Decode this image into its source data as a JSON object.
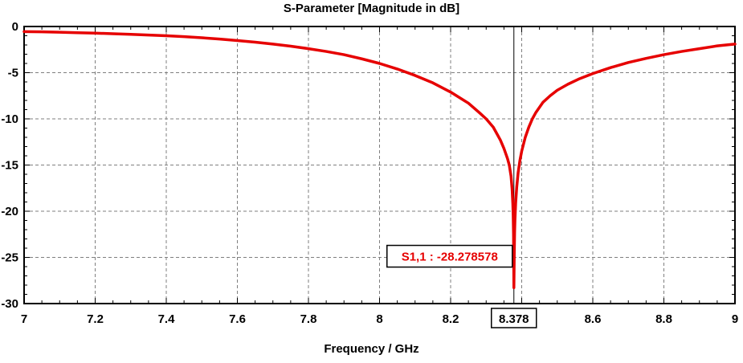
{
  "chart": {
    "title": "S-Parameter [Magnitude in dB]",
    "xlabel": "Frequency / GHz"
  },
  "colors": {
    "curve": "#e60000",
    "grid": "#7f7f7f",
    "axis": "#000000",
    "marker_line": "#000000",
    "marker_text": "#e60000",
    "background": "#ffffff"
  },
  "chart_data": {
    "type": "line",
    "title": "S-Parameter [Magnitude in dB]",
    "xlabel": "Frequency / GHz",
    "ylabel": "",
    "xlim": [
      7,
      9
    ],
    "ylim": [
      -30,
      0
    ],
    "grid": true,
    "legend_position": "none",
    "x_ticks": [
      7,
      7.2,
      7.4,
      7.6,
      7.8,
      8,
      8.2,
      8.4,
      8.6,
      8.8,
      9
    ],
    "x_tick_labels": [
      "7",
      "7.2",
      "7.4",
      "7.6",
      "7.8",
      "8",
      "8.2",
      "",
      "8.6",
      "8.8",
      "9"
    ],
    "y_ticks": [
      0,
      -5,
      -10,
      -15,
      -20,
      -25,
      -30
    ],
    "y_tick_labels": [
      "0",
      "-5",
      "-10",
      "-15",
      "-20",
      "-25",
      "-30"
    ],
    "marker": {
      "x": 8.378,
      "y": -28.278578,
      "label": "S1,1 : -28.278578",
      "x_axis_label": "8.378"
    },
    "series": [
      {
        "name": "S1,1",
        "color": "#e60000",
        "points": [
          [
            7.0,
            -0.55
          ],
          [
            7.05,
            -0.58
          ],
          [
            7.1,
            -0.62
          ],
          [
            7.15,
            -0.67
          ],
          [
            7.2,
            -0.72
          ],
          [
            7.25,
            -0.78
          ],
          [
            7.3,
            -0.85
          ],
          [
            7.35,
            -0.92
          ],
          [
            7.4,
            -1.0
          ],
          [
            7.45,
            -1.1
          ],
          [
            7.5,
            -1.22
          ],
          [
            7.55,
            -1.36
          ],
          [
            7.6,
            -1.52
          ],
          [
            7.65,
            -1.7
          ],
          [
            7.7,
            -1.9
          ],
          [
            7.75,
            -2.13
          ],
          [
            7.8,
            -2.4
          ],
          [
            7.85,
            -2.7
          ],
          [
            7.9,
            -3.05
          ],
          [
            7.95,
            -3.5
          ],
          [
            8.0,
            -4.0
          ],
          [
            8.05,
            -4.6
          ],
          [
            8.1,
            -5.3
          ],
          [
            8.15,
            -6.1
          ],
          [
            8.2,
            -7.1
          ],
          [
            8.25,
            -8.3
          ],
          [
            8.28,
            -9.3
          ],
          [
            8.3,
            -10.0
          ],
          [
            8.32,
            -10.9
          ],
          [
            8.33,
            -11.6
          ],
          [
            8.34,
            -12.3
          ],
          [
            8.35,
            -13.2
          ],
          [
            8.36,
            -14.3
          ],
          [
            8.365,
            -15.0
          ],
          [
            8.37,
            -16.2
          ],
          [
            8.373,
            -17.6
          ],
          [
            8.375,
            -19.2
          ],
          [
            8.376,
            -20.4
          ],
          [
            8.377,
            -22.5
          ],
          [
            8.378,
            -28.278578
          ],
          [
            8.379,
            -24.8
          ],
          [
            8.38,
            -22.3
          ],
          [
            8.381,
            -20.9
          ],
          [
            8.383,
            -19.1
          ],
          [
            8.386,
            -17.4
          ],
          [
            8.39,
            -15.8
          ],
          [
            8.395,
            -14.5
          ],
          [
            8.4,
            -13.5
          ],
          [
            8.41,
            -12.0
          ],
          [
            8.42,
            -10.9
          ],
          [
            8.43,
            -10.0
          ],
          [
            8.44,
            -9.3
          ],
          [
            8.46,
            -8.2
          ],
          [
            8.48,
            -7.5
          ],
          [
            8.5,
            -6.9
          ],
          [
            8.53,
            -6.25
          ],
          [
            8.56,
            -5.7
          ],
          [
            8.6,
            -5.1
          ],
          [
            8.65,
            -4.45
          ],
          [
            8.7,
            -3.9
          ],
          [
            8.75,
            -3.45
          ],
          [
            8.8,
            -3.05
          ],
          [
            8.85,
            -2.7
          ],
          [
            8.9,
            -2.4
          ],
          [
            8.95,
            -2.1
          ],
          [
            9.0,
            -1.9
          ]
        ]
      }
    ]
  }
}
